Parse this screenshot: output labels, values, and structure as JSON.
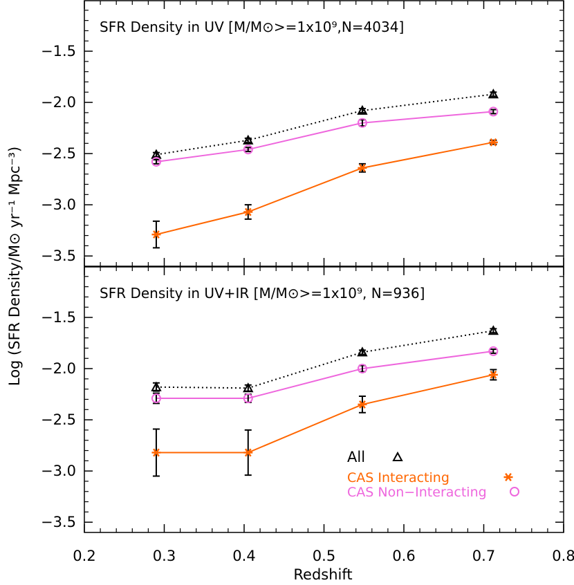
{
  "figure": {
    "ylabel": "Log (SFR Density/M⊙ yr⁻¹ Mpc⁻³)",
    "xlabel": "Redshift"
  },
  "legend": [
    {
      "label": "All",
      "marker": "triangle",
      "color": "#000000"
    },
    {
      "label": "CAS Interacting",
      "marker": "asterisk",
      "color": "#ff6600"
    },
    {
      "label": "CAS Non−Interacting",
      "marker": "circle",
      "color": "#ee66dd"
    }
  ],
  "chart_data": [
    {
      "type": "line",
      "title": "SFR Density in UV  [M/M⊙>=1x10⁹,N=4034]",
      "xlim": [
        0.2,
        0.8
      ],
      "ylim": [
        -3.6,
        -1.0
      ],
      "yticks": [
        -3.5,
        -3.0,
        -2.5,
        -2.0,
        -1.5
      ],
      "xticks": [
        0.2,
        0.3,
        0.4,
        0.5,
        0.6,
        0.7,
        0.8
      ],
      "x": [
        0.29,
        0.405,
        0.548,
        0.712
      ],
      "series": [
        {
          "name": "All",
          "marker": "triangle",
          "color": "#000000",
          "linestyle": "dotted",
          "values": [
            -2.51,
            -2.37,
            -2.08,
            -1.92
          ],
          "err": [
            0.02,
            0.02,
            0.02,
            0.02
          ]
        },
        {
          "name": "CAS Non−Interacting",
          "marker": "circle",
          "color": "#ee66dd",
          "linestyle": "solid",
          "values": [
            -2.58,
            -2.46,
            -2.2,
            -2.09
          ],
          "err": [
            0.02,
            0.02,
            0.03,
            0.02
          ]
        },
        {
          "name": "CAS Interacting",
          "marker": "asterisk",
          "color": "#ff6600",
          "linestyle": "solid",
          "values": [
            -3.29,
            -3.07,
            -2.64,
            -2.39
          ],
          "err": [
            0.13,
            0.07,
            0.04,
            0.02
          ]
        }
      ]
    },
    {
      "type": "line",
      "title": "SFR Density in UV+IR   [M/M⊙>=1x10⁹, N=936]",
      "xlim": [
        0.2,
        0.8
      ],
      "ylim": [
        -3.6,
        -1.0
      ],
      "yticks": [
        -3.5,
        -3.0,
        -2.5,
        -2.0,
        -1.5
      ],
      "xticks": [
        0.2,
        0.3,
        0.4,
        0.5,
        0.6,
        0.7,
        0.8
      ],
      "xticklabels": [
        "0.2",
        "0.3",
        "0.4",
        "0.5",
        "0.6",
        "0.7",
        "0.8"
      ],
      "x": [
        0.29,
        0.405,
        0.548,
        0.712
      ],
      "series": [
        {
          "name": "All",
          "marker": "triangle",
          "color": "#000000",
          "linestyle": "dotted",
          "values": [
            -2.18,
            -2.19,
            -1.84,
            -1.63
          ],
          "err": [
            0.04,
            0.03,
            0.02,
            0.02
          ]
        },
        {
          "name": "CAS Non−Interacting",
          "marker": "circle",
          "color": "#ee66dd",
          "linestyle": "solid",
          "values": [
            -2.29,
            -2.29,
            -2.0,
            -1.83
          ],
          "err": [
            0.05,
            0.04,
            0.03,
            0.02
          ]
        },
        {
          "name": "CAS Interacting",
          "marker": "asterisk",
          "color": "#ff6600",
          "linestyle": "solid",
          "values": [
            -2.82,
            -2.82,
            -2.35,
            -2.06
          ],
          "err": [
            0.23,
            0.22,
            0.08,
            0.05
          ]
        }
      ]
    }
  ]
}
